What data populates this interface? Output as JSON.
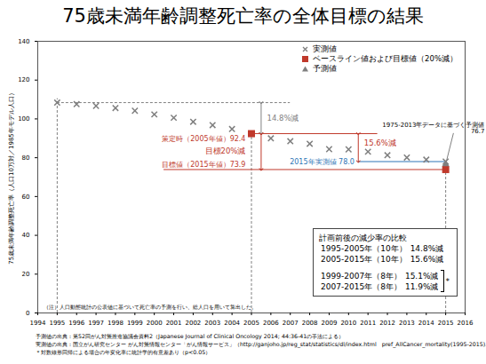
{
  "chart_data": {
    "type": "scatter",
    "title": "75歳未満年齢調整死亡率の全体目標の結果",
    "y_label": "75歳未満年齢調整死亡率（人口10万対／1985年モデル人口）",
    "xlim": [
      1994,
      2016
    ],
    "xticks": [
      1994,
      1995,
      1996,
      1997,
      1998,
      1999,
      2000,
      2001,
      2002,
      2003,
      2004,
      2005,
      2006,
      2007,
      2008,
      2009,
      2010,
      2011,
      2012,
      2013,
      2014,
      2015,
      2016
    ],
    "ylim": [
      0,
      140
    ],
    "yticks": [
      0,
      20,
      40,
      60,
      80,
      100,
      120,
      140
    ],
    "grid": false,
    "legend": "top-right",
    "series": [
      {
        "name": "実測値",
        "color": "#7f7f7f",
        "marker": "x",
        "x": [
          1995,
          1996,
          1997,
          1998,
          1999,
          2000,
          2001,
          2002,
          2003,
          2004,
          2005,
          2006,
          2007,
          2008,
          2009,
          2010,
          2011,
          2012,
          2013,
          2014,
          2015
        ],
        "values": [
          108.4,
          107.6,
          106.7,
          105.6,
          104.2,
          102.3,
          100.6,
          98.5,
          96.8,
          94.8,
          92.4,
          90.0,
          88.5,
          87.2,
          84.4,
          84.3,
          83.1,
          81.3,
          80.1,
          79.0,
          78.0
        ]
      },
      {
        "name": "ベースライン値および目標値（20%減）",
        "color": "#c0392b",
        "marker": "square",
        "x": [
          2005,
          2015
        ],
        "values": [
          92.4,
          73.9
        ]
      },
      {
        "name": "予測値",
        "color": "#7f7f7f",
        "marker": "triangle",
        "x": [
          2015
        ],
        "values": [
          76.7
        ]
      }
    ],
    "annotations": {
      "baseline": "策定時（2005年値）92.4",
      "target_reduction": "目標20%減",
      "target": "目標値（2015年値）73.9",
      "actual": "2015年実測値 78.0",
      "reduction_before": "14.8%減",
      "reduction_after": "15.6%減",
      "prediction": [
        "1975-2013年データに基づく予測値",
        "76.7"
      ],
      "note": "（注）人口動態統計の公表値に基づいて死亡率の予測を行い、総人口を用いて算出した。"
    },
    "comparison": {
      "title": "計画前後の減少率の比較",
      "groups": [
        [
          {
            "period": "1995-2005年（10年）",
            "change": "14.8%減"
          },
          {
            "period": "2005-2015年（10年）",
            "change": "15.6%減"
          }
        ],
        [
          {
            "period": "1999-2007年（8年）",
            "change": "15.1%減"
          },
          {
            "period": "2007-2015年（8年）",
            "change": "11.9%減"
          }
        ]
      ],
      "significance": "*"
    },
    "footnotes": [
      "予測値の出典：第52回がん対策推進協議会資料2（Japanese Journal of Clinical Oncology 2014; 44:36-41の手法による）",
      "実測値の出典：国立がん研究センター がん対策情報センター「がん情報サービス」（http://ganjoho.jp/reg_stat/statistics/dl/index.html　pref_AllCancer_mortality(1995-2015).xls）",
      "＊対数線形回帰による場合の年変化率に統計学的有意差あり（p<0.05）"
    ]
  }
}
